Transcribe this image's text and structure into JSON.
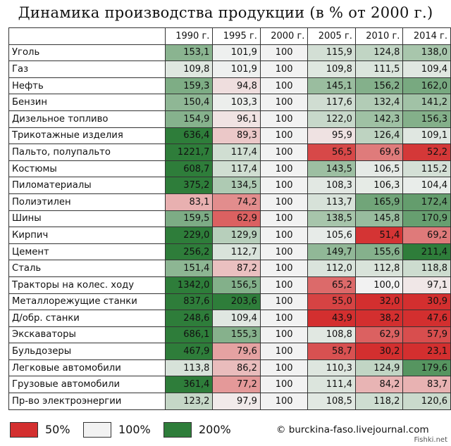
{
  "title": "Динамика производства продукции (в % от 2000 г.)",
  "chart_data": {
    "type": "heatmap",
    "title": "Динамика производства продукции (в % от 2000 г.)",
    "columns": [
      "1990 г.",
      "1995 г.",
      "2000 г.",
      "2005 г.",
      "2010 г.",
      "2014 г."
    ],
    "rows": [
      {
        "label": "Уголь",
        "values": [
          "153,1",
          "101,9",
          "100",
          "115,9",
          "124,8",
          "138,0"
        ]
      },
      {
        "label": "Газ",
        "values": [
          "109,8",
          "101,9",
          "100",
          "109,8",
          "111,5",
          "109,4"
        ]
      },
      {
        "label": "Нефть",
        "values": [
          "159,3",
          "94,8",
          "100",
          "145,1",
          "156,2",
          "162,0"
        ]
      },
      {
        "label": "Бензин",
        "values": [
          "150,4",
          "103,3",
          "100",
          "117,6",
          "132,4",
          "141,2"
        ]
      },
      {
        "label": "Дизельное топливо",
        "values": [
          "154,9",
          "96,1",
          "100",
          "122,0",
          "142,3",
          "156,3"
        ]
      },
      {
        "label": "Трикотажные изделия",
        "values": [
          "636,4",
          "89,3",
          "100",
          "95,9",
          "126,4",
          "109,1"
        ]
      },
      {
        "label": "Пальто, полупальто",
        "values": [
          "1221,7",
          "117,4",
          "100",
          "56,5",
          "69,6",
          "52,2"
        ]
      },
      {
        "label": "Костюмы",
        "values": [
          "608,7",
          "117,4",
          "100",
          "143,5",
          "106,5",
          "115,2"
        ]
      },
      {
        "label": "Пиломатериалы",
        "values": [
          "375,2",
          "134,5",
          "100",
          "108,3",
          "106,3",
          "104,4"
        ]
      },
      {
        "label": "Полиэтилен",
        "values": [
          "83,1",
          "74,2",
          "100",
          "113,7",
          "165,9",
          "172,4"
        ]
      },
      {
        "label": "Шины",
        "values": [
          "159,5",
          "62,9",
          "100",
          "138,5",
          "145,8",
          "170,9"
        ]
      },
      {
        "label": "Кирпич",
        "values": [
          "229,0",
          "129,9",
          "100",
          "105,6",
          "51,4",
          "69,2"
        ]
      },
      {
        "label": "Цемент",
        "values": [
          "256,2",
          "112,7",
          "100",
          "149,7",
          "155,6",
          "211,4"
        ]
      },
      {
        "label": "Сталь",
        "values": [
          "151,4",
          "87,2",
          "100",
          "112,0",
          "112,8",
          "118,8"
        ]
      },
      {
        "label": "Тракторы на колес. ходу",
        "values": [
          "1342,0",
          "156,5",
          "100",
          "65,2",
          "100,0",
          "97,1"
        ]
      },
      {
        "label": "Металлорежущие станки",
        "values": [
          "837,6",
          "203,6",
          "100",
          "55,0",
          "32,0",
          "30,9"
        ]
      },
      {
        "label": "Д/обр. станки",
        "values": [
          "248,6",
          "109,4",
          "100",
          "43,9",
          "38,2",
          "47,6"
        ]
      },
      {
        "label": "Экскаваторы",
        "values": [
          "686,1",
          "155,3",
          "100",
          "108,8",
          "62,9",
          "57,9"
        ]
      },
      {
        "label": "Бульдозеры",
        "values": [
          "467,9",
          "79,6",
          "100",
          "58,7",
          "30,2",
          "23,1"
        ]
      },
      {
        "label": "Легковые автомобили",
        "values": [
          "113,8",
          "86,2",
          "100",
          "110,3",
          "124,9",
          "179,6"
        ]
      },
      {
        "label": "Грузовые автомобили",
        "values": [
          "361,4",
          "77,2",
          "100",
          "111,4",
          "84,2",
          "83,7"
        ]
      },
      {
        "label": "Пр-во электроэнергии",
        "values": [
          "123,2",
          "97,9",
          "100",
          "108,5",
          "118,2",
          "120,6"
        ]
      }
    ],
    "color_scale": {
      "low": {
        "value": 50,
        "label": "50%",
        "color": "#d32f2f"
      },
      "mid": {
        "value": 100,
        "label": "100%",
        "color": "#f2f2f2"
      },
      "high": {
        "value": 200,
        "label": "200%",
        "color": "#2e7d3a"
      }
    }
  },
  "credit": "© burckina-faso.livejournal.com",
  "watermark": "Fishki.net"
}
